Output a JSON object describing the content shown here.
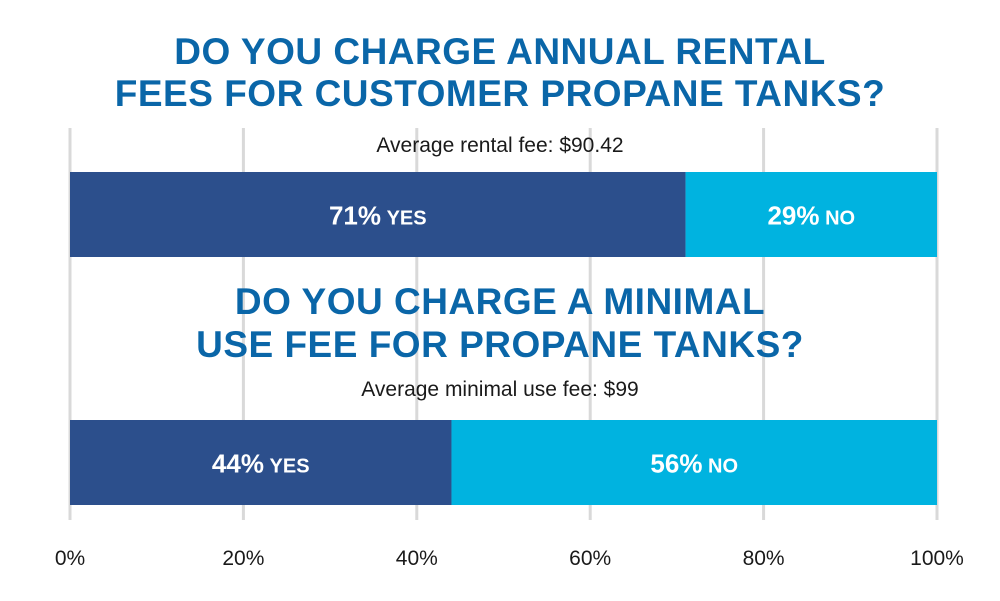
{
  "chart_data": [
    {
      "type": "bar",
      "title_lines": [
        "DO YOU CHARGE ANNUAL RENTAL",
        "FEES FOR CUSTOMER PROPANE TANKS?"
      ],
      "subtitle": "Average rental fee: $90.42",
      "series": [
        {
          "name": "YES",
          "value": 71,
          "label": "71%",
          "color": "#2c4f8c"
        },
        {
          "name": "NO",
          "value": 29,
          "label": "29%",
          "color": "#00b3e0"
        }
      ]
    },
    {
      "type": "bar",
      "title_lines": [
        "DO YOU CHARGE A MINIMAL",
        "USE FEE FOR PROPANE TANKS?"
      ],
      "subtitle": "Average minimal use fee: $99",
      "series": [
        {
          "name": "YES",
          "value": 44,
          "label": "44%",
          "color": "#2c4f8c"
        },
        {
          "name": "NO",
          "value": 56,
          "label": "56%",
          "color": "#00b3e0"
        }
      ]
    }
  ],
  "axis": {
    "ticks": [
      0,
      20,
      40,
      60,
      80,
      100
    ],
    "tick_labels": [
      "0%",
      "20%",
      "40%",
      "60%",
      "80%",
      "100%"
    ],
    "xlim": [
      0,
      100
    ],
    "grid": true
  },
  "colors": {
    "title": "#0a66a8",
    "yes": "#2c4f8c",
    "no": "#00b3e0",
    "grid": "#d9d9d9"
  }
}
